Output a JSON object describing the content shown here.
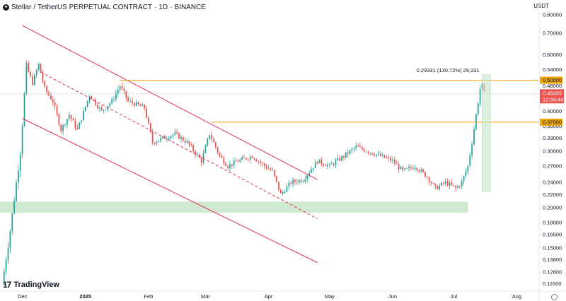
{
  "header": {
    "symbol": "Stellar",
    "separator": "/",
    "quote": "TetherUS PERPETUAL CONTRACT",
    "interval": "1D",
    "exchange": "BINANCE",
    "currency": "USDT"
  },
  "logo": {
    "text": "TradingView",
    "mark": "17"
  },
  "colors": {
    "up": "#26a69a",
    "down": "#ef5350",
    "channel": "#e8314f",
    "hline": "#f0a500",
    "zone": "#c8e6c9",
    "price_tag": "#ef5350"
  },
  "chart_data": {
    "type": "candlestick",
    "price_axis": {
      "scale": "log",
      "ticks": [
        "0.80000",
        "0.70000",
        "0.60000",
        "0.54000",
        "0.48000",
        "0.40000",
        "0.36000",
        "0.33000",
        "0.30000",
        "0.27000",
        "0.24000",
        "0.22000",
        "0.20000",
        "0.18000",
        "0.16500",
        "0.15000",
        "0.13800",
        "0.12600",
        "0.11600"
      ],
      "range": [
        0.11,
        0.82
      ]
    },
    "time_axis": {
      "labels": [
        "Dec",
        "2025",
        "Feb",
        "Mar",
        "Apr",
        "May",
        "Jun",
        "Jul",
        "Aug"
      ],
      "label_dates": [
        "2024-12-01",
        "2025-01-01",
        "2025-02-01",
        "2025-03-01",
        "2025-04-01",
        "2025-05-01",
        "2025-06-01",
        "2025-07-01",
        "2025-08-01"
      ],
      "range": [
        "2024-11-20",
        "2025-08-12"
      ]
    },
    "current_price": {
      "value": "0.45455",
      "countdown": "12:34:44"
    },
    "horizontal_levels": [
      {
        "value": "0.50000"
      },
      {
        "value": "0.37000"
      }
    ],
    "measurement": {
      "text": "0.29331 (130.72%) 29,331"
    },
    "demand_zone": {
      "from": "2024-11-20",
      "to": "2025-07-08",
      "low": 0.193,
      "high": 0.209
    },
    "candles_summary": "Daily candles of the XLM/USDT perpetual contract, anchored estimates",
    "anchors": [
      [
        "2024-11-21",
        0.115
      ],
      [
        "2024-11-25",
        0.17
      ],
      [
        "2024-11-30",
        0.3
      ],
      [
        "2024-12-03",
        0.55
      ],
      [
        "2024-12-06",
        0.49
      ],
      [
        "2024-12-09",
        0.56
      ],
      [
        "2024-12-12",
        0.47
      ],
      [
        "2024-12-16",
        0.43
      ],
      [
        "2024-12-20",
        0.35
      ],
      [
        "2024-12-24",
        0.39
      ],
      [
        "2024-12-28",
        0.35
      ],
      [
        "2025-01-03",
        0.45
      ],
      [
        "2025-01-09",
        0.4
      ],
      [
        "2025-01-14",
        0.43
      ],
      [
        "2025-01-18",
        0.48
      ],
      [
        "2025-01-22",
        0.43
      ],
      [
        "2025-01-26",
        0.42
      ],
      [
        "2025-01-30",
        0.41
      ],
      [
        "2025-02-03",
        0.32
      ],
      [
        "2025-02-08",
        0.33
      ],
      [
        "2025-02-14",
        0.34
      ],
      [
        "2025-02-20",
        0.32
      ],
      [
        "2025-02-27",
        0.28
      ],
      [
        "2025-03-03",
        0.34
      ],
      [
        "2025-03-08",
        0.29
      ],
      [
        "2025-03-12",
        0.27
      ],
      [
        "2025-03-17",
        0.28
      ],
      [
        "2025-03-24",
        0.29
      ],
      [
        "2025-03-30",
        0.27
      ],
      [
        "2025-04-03",
        0.26
      ],
      [
        "2025-04-07",
        0.22
      ],
      [
        "2025-04-12",
        0.24
      ],
      [
        "2025-04-18",
        0.245
      ],
      [
        "2025-04-25",
        0.28
      ],
      [
        "2025-05-01",
        0.27
      ],
      [
        "2025-05-08",
        0.29
      ],
      [
        "2025-05-14",
        0.31
      ],
      [
        "2025-05-20",
        0.3
      ],
      [
        "2025-05-26",
        0.29
      ],
      [
        "2025-06-01",
        0.28
      ],
      [
        "2025-06-06",
        0.26
      ],
      [
        "2025-06-12",
        0.27
      ],
      [
        "2025-06-18",
        0.25
      ],
      [
        "2025-06-22",
        0.23
      ],
      [
        "2025-06-27",
        0.24
      ],
      [
        "2025-07-02",
        0.23
      ],
      [
        "2025-07-05",
        0.24
      ],
      [
        "2025-07-08",
        0.27
      ],
      [
        "2025-07-10",
        0.32
      ],
      [
        "2025-07-12",
        0.39
      ],
      [
        "2025-07-14",
        0.47
      ],
      [
        "2025-07-15",
        0.48
      ],
      [
        "2025-07-16",
        0.45455
      ]
    ]
  }
}
